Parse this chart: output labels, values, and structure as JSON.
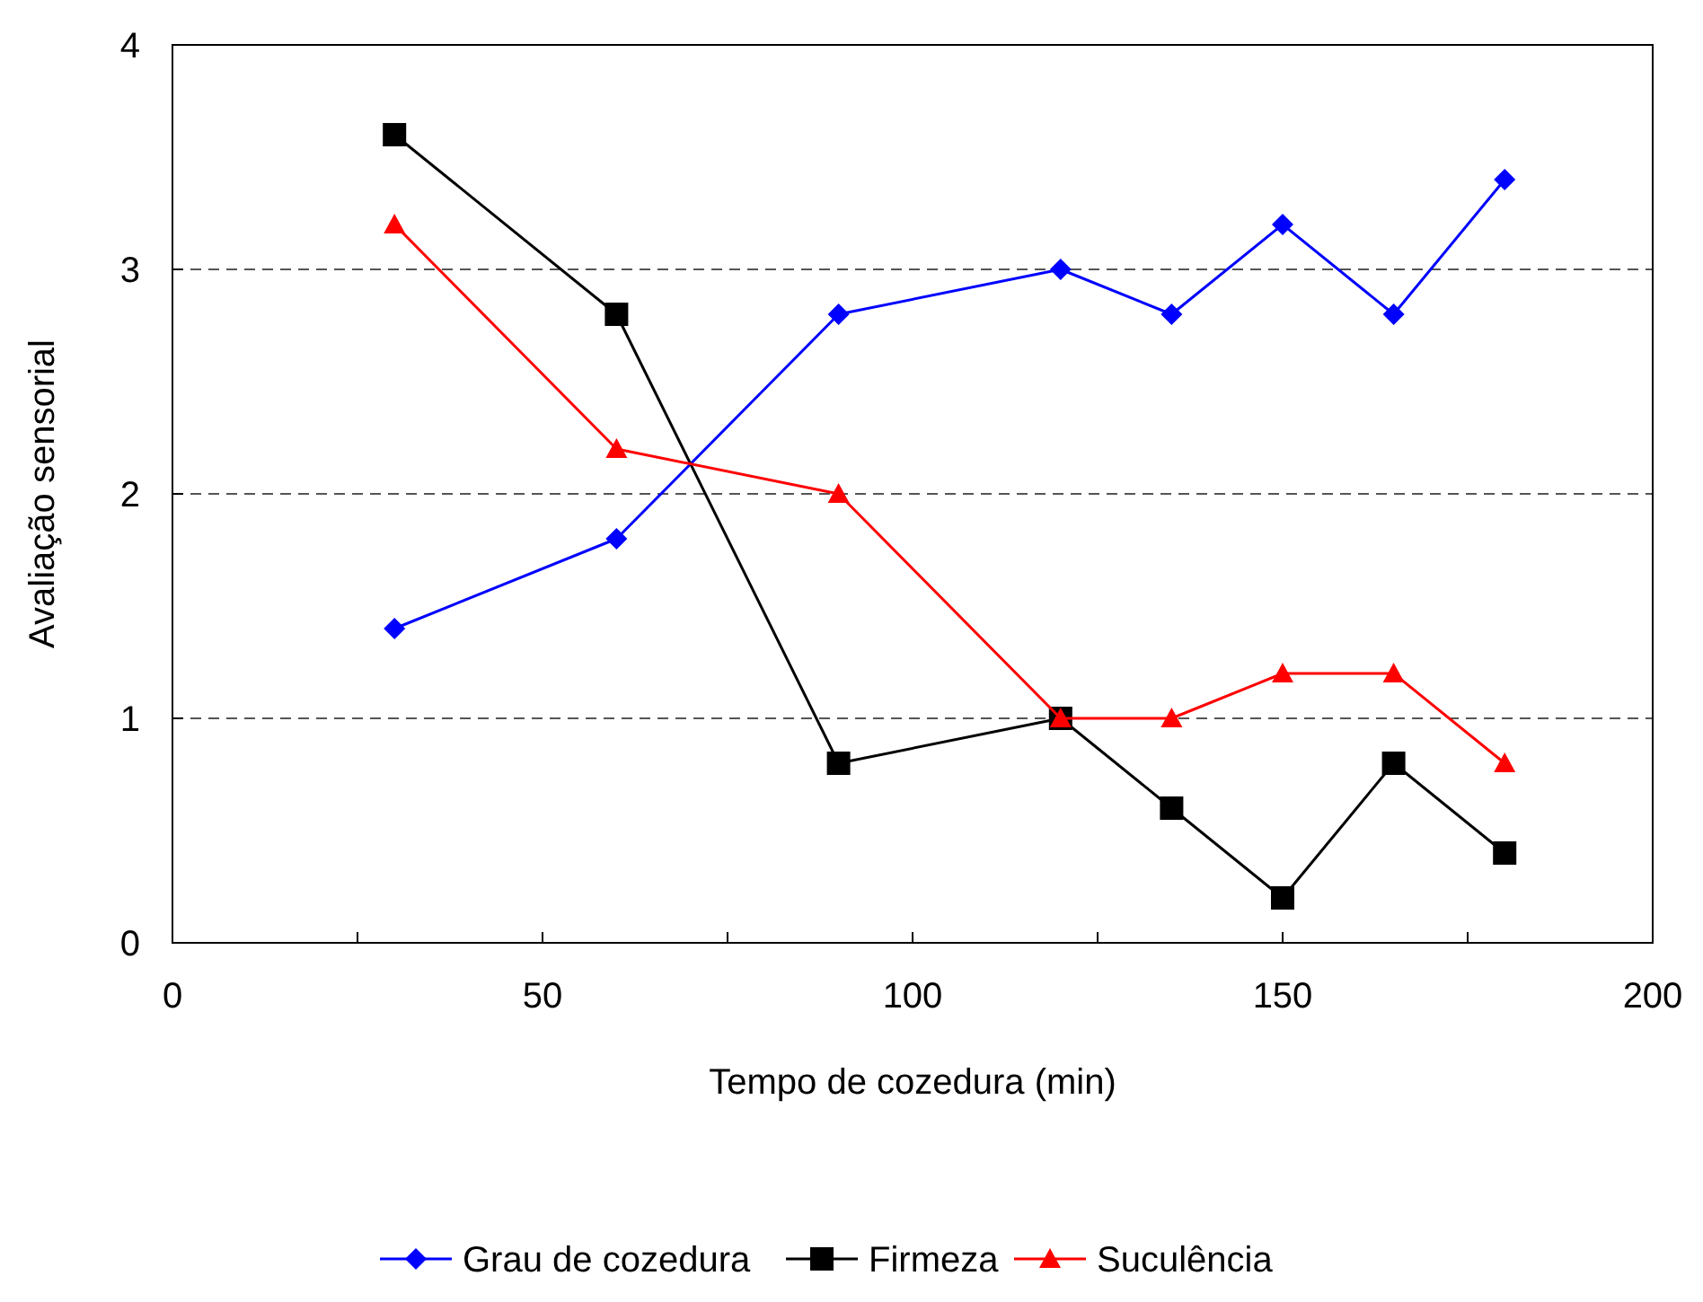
{
  "chart_data": {
    "type": "line",
    "xlabel": "Tempo de cozedura (min)",
    "ylabel": "Avaliação sensorial",
    "x": [
      30,
      60,
      90,
      120,
      135,
      150,
      165,
      180
    ],
    "series": [
      {
        "name": "Grau de cozedura",
        "color": "#0000ff",
        "marker": "diamond",
        "values": [
          1.4,
          1.8,
          2.8,
          3.0,
          2.8,
          3.2,
          2.8,
          3.4
        ]
      },
      {
        "name": "Firmeza",
        "color": "#000000",
        "marker": "square",
        "values": [
          3.6,
          2.8,
          0.8,
          1.0,
          0.6,
          0.2,
          0.8,
          0.4
        ]
      },
      {
        "name": "Suculência",
        "color": "#ff0000",
        "marker": "triangle",
        "values": [
          3.2,
          2.2,
          2.0,
          1.0,
          1.0,
          1.2,
          1.2,
          0.8
        ]
      }
    ],
    "xlim": [
      0,
      200
    ],
    "xticks": [
      0,
      {
        "value": 25,
        "label": null
      },
      50,
      {
        "value": 75,
        "label": null
      },
      100,
      {
        "value": 125,
        "label": null
      },
      150,
      {
        "value": 175,
        "label": null
      },
      200
    ],
    "ylim": [
      0,
      4
    ],
    "yticks": [
      0,
      1,
      2,
      3,
      4
    ],
    "grid": "y",
    "legend": "bottom",
    "line_style": "solid"
  }
}
